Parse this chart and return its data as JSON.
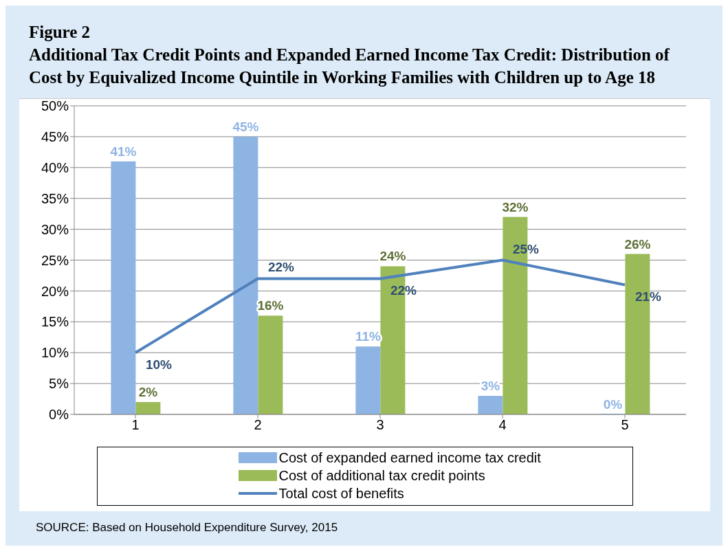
{
  "chart_data": {
    "type": "bar",
    "title": "Figure 2",
    "subtitle": "Additional Tax Credit Points and Expanded Earned Income Tax Credit: Distribution of Cost by Equivalized Income Quintile in Working Families with Children up to Age 18",
    "categories": [
      "1",
      "2",
      "3",
      "4",
      "5"
    ],
    "series": [
      {
        "name": "Cost of expanded earned income tax credit",
        "color": "#8eb4e3",
        "values": [
          41,
          45,
          11,
          3,
          0
        ],
        "value_labels": [
          "41%",
          "45%",
          "11%",
          "3%",
          "0%"
        ]
      },
      {
        "name": "Cost of additional tax credit points",
        "color": "#9bbb59",
        "values": [
          2,
          16,
          24,
          32,
          26
        ],
        "value_labels": [
          "2%",
          "16%",
          "24%",
          "32%",
          "26%"
        ]
      },
      {
        "name": "Total cost of benefits",
        "type": "line",
        "color": "#4f81bd",
        "values": [
          10,
          22,
          22,
          25,
          21
        ],
        "value_labels": [
          "10%",
          "22%",
          "22%",
          "25%",
          "21%"
        ]
      }
    ],
    "ylim": [
      0,
      50
    ],
    "yticks": [
      {
        "value": 0,
        "label": "0%"
      },
      {
        "value": 5,
        "label": "5%"
      },
      {
        "value": 10,
        "label": "10%"
      },
      {
        "value": 15,
        "label": "15%"
      },
      {
        "value": 20,
        "label": "20%"
      },
      {
        "value": 25,
        "label": "25%"
      },
      {
        "value": 30,
        "label": "30%"
      },
      {
        "value": 35,
        "label": "35%"
      },
      {
        "value": 40,
        "label": "40%"
      },
      {
        "value": 45,
        "label": "45%"
      },
      {
        "value": 50,
        "label": "50%"
      }
    ],
    "grid": "y",
    "legend": "bottom",
    "annotations": [
      "SOURCE: Based on Household Expenditure Survey, 2015"
    ]
  }
}
